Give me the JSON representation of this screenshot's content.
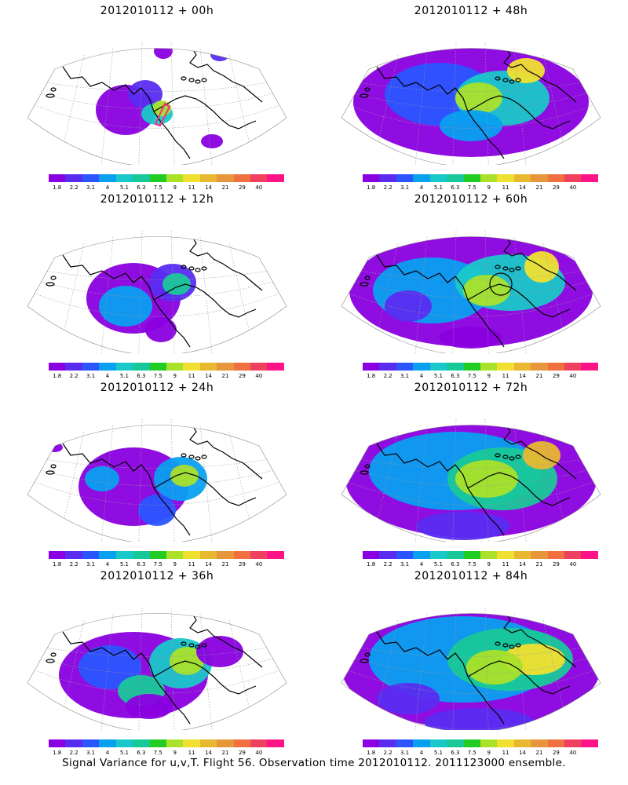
{
  "colorbar": {
    "colors": [
      "#8a00e0",
      "#5a2cf0",
      "#2a55ff",
      "#0aa0f0",
      "#19c8c8",
      "#19c899",
      "#22cc22",
      "#aae22a",
      "#f0e030",
      "#e8b830",
      "#e8963c",
      "#f07040",
      "#f04060",
      "#ff1488"
    ],
    "labels": [
      "1.8",
      "2.2",
      "3.1",
      "4",
      "5.1",
      "6.3",
      "7.5",
      "9",
      "11",
      "14",
      "21",
      "29",
      "40"
    ]
  },
  "panels": [
    {
      "title": "2012010112 + 00h",
      "level": 0
    },
    {
      "title": "2012010112 + 48h",
      "level": 4
    },
    {
      "title": "2012010112 + 12h",
      "level": 1
    },
    {
      "title": "2012010112 + 60h",
      "level": 5
    },
    {
      "title": "2012010112 + 24h",
      "level": 2
    },
    {
      "title": "2012010112 + 72h",
      "level": 6
    },
    {
      "title": "2012010112 + 36h",
      "level": 3
    },
    {
      "title": "2012010112 + 84h",
      "level": 7
    }
  ],
  "caption": "Signal Variance for u,v,T. Flight 56. Observation time 2012010112. 2011123000 ensemble."
}
